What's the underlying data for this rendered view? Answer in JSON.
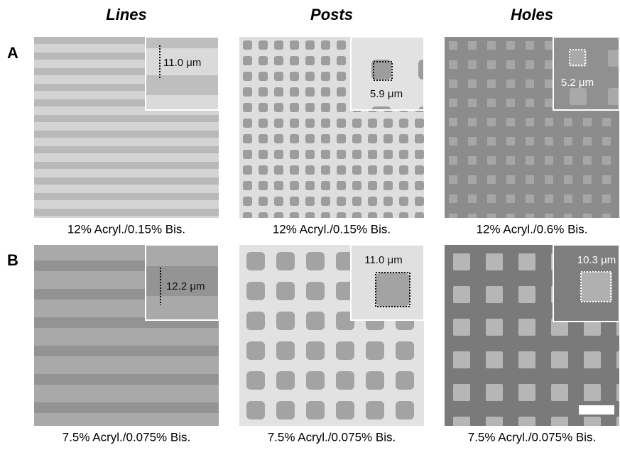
{
  "column_titles": [
    "Lines",
    "Posts",
    "Holes"
  ],
  "row_labels": [
    "A",
    "B"
  ],
  "panels": [
    [
      {
        "inset_label": "11.0 μm",
        "caption": "12% Acryl./0.15% Bis."
      },
      {
        "inset_label": "5.9 μm",
        "caption": "12% Acryl./0.15% Bis."
      },
      {
        "inset_label": "5.2 μm",
        "caption": "12% Acryl./0.6% Bis."
      }
    ],
    [
      {
        "inset_label": "12.2 μm",
        "caption": "7.5% Acryl./0.075% Bis."
      },
      {
        "inset_label": "11.0 μm",
        "caption": "7.5% Acryl./0.075% Bis."
      },
      {
        "inset_label": "10.3 μm",
        "caption": "7.5% Acryl./0.075% Bis."
      }
    ]
  ]
}
